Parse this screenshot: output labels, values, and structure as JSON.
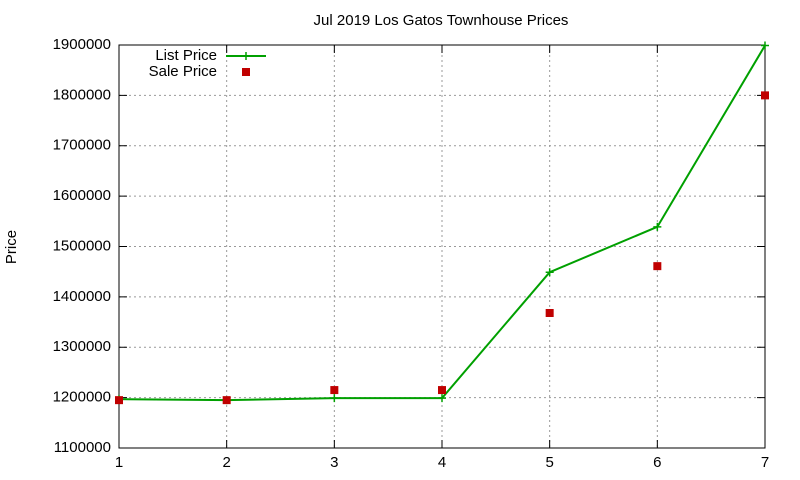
{
  "chart_data": {
    "type": "line",
    "title": "Jul 2019 Los Gatos Townhouse Prices",
    "y_label": "Price",
    "x": [
      1,
      2,
      3,
      4,
      5,
      6,
      7
    ],
    "series": [
      {
        "name": "List Price",
        "color": "#00a000",
        "marker": "plus",
        "line": true,
        "values": [
          1197000,
          1195000,
          1199000,
          1199000,
          1449000,
          1539000,
          1899000
        ]
      },
      {
        "name": "Sale Price",
        "color": "#c00000",
        "marker": "square",
        "line": false,
        "values": [
          1195000,
          1195000,
          1215000,
          1215000,
          1368000,
          1461000,
          1800000
        ]
      }
    ],
    "xlim": [
      1,
      7
    ],
    "xticks": [
      1,
      2,
      3,
      4,
      5,
      6,
      7
    ],
    "ylim": [
      1100000,
      1900000
    ],
    "yticks": [
      1100000,
      1200000,
      1300000,
      1400000,
      1500000,
      1600000,
      1700000,
      1800000,
      1900000
    ],
    "grid": true,
    "legend": "top-left"
  }
}
